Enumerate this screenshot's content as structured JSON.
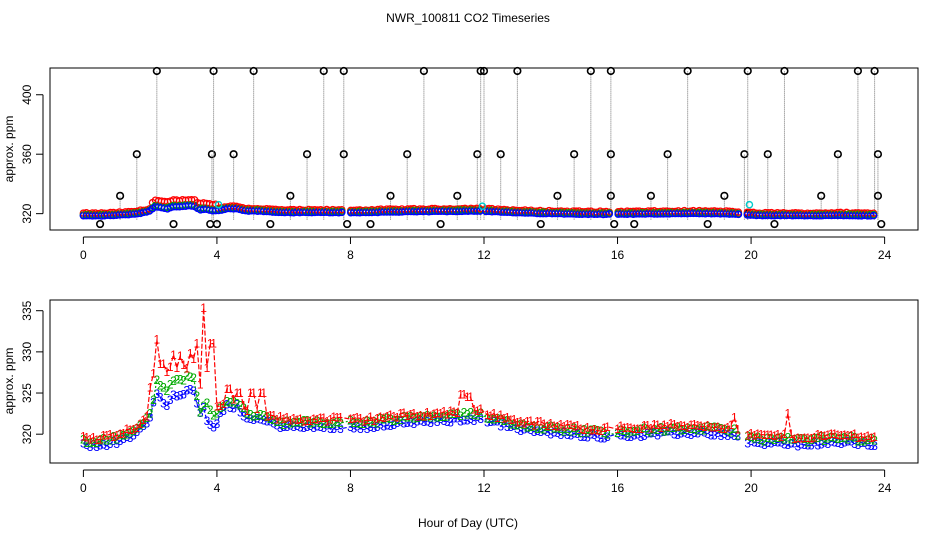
{
  "chart_data": [
    {
      "type": "scatter",
      "title": "NWR_100811  CO2 Timeseries",
      "xlabel": "",
      "ylabel": "approx. ppm",
      "xlim": [
        -1,
        25
      ],
      "ylim": [
        309,
        418
      ],
      "xticks": [
        0,
        4,
        8,
        12,
        16,
        20,
        24
      ],
      "yticks": [
        320,
        360,
        400
      ],
      "series_colors": [
        "#000000",
        "#ff0000",
        "#00aa00",
        "#0000ff",
        "#00cccc"
      ],
      "spike_times": [
        1.1,
        1.6,
        2.2,
        3.85,
        3.9,
        4.0,
        4.5,
        5.1,
        6.2,
        6.7,
        7.2,
        7.8,
        7.8,
        9.2,
        9.7,
        10.2,
        11.2,
        11.8,
        11.9,
        12.0,
        12.5,
        13.0,
        14.2,
        14.7,
        15.2,
        15.8,
        15.8,
        15.8,
        17.0,
        17.5,
        18.1,
        19.2,
        19.8,
        19.9,
        19.9,
        20.5,
        21.0,
        22.1,
        22.6,
        23.2,
        23.7,
        23.8,
        23.8
      ],
      "spike_values": [
        332,
        360,
        416,
        360,
        416,
        313,
        360,
        416,
        332,
        360,
        416,
        416,
        360,
        332,
        360,
        416,
        332,
        360,
        416,
        416,
        360,
        416,
        332,
        360,
        416,
        416,
        360,
        332,
        332,
        360,
        416,
        332,
        360,
        416,
        320,
        360,
        416,
        332,
        360,
        416,
        416,
        360,
        332
      ],
      "low_times": [
        0.5,
        2.7,
        3.8,
        5.6,
        7.9,
        8.6,
        10.7,
        13.7,
        15.9,
        16.5,
        18.7,
        20.7,
        23.9
      ],
      "low_value": 313,
      "cyan_times": [
        4.05,
        11.95,
        19.95
      ],
      "cyan_values": [
        326,
        325,
        326
      ]
    },
    {
      "type": "line",
      "title": "",
      "xlabel": "Hour of Day (UTC)",
      "ylabel": "approx. ppm",
      "xlim": [
        -1,
        25
      ],
      "ylim": [
        316.5,
        336.3
      ],
      "xticks": [
        0,
        4,
        8,
        12,
        16,
        20,
        24
      ],
      "yticks": [
        320,
        325,
        330,
        335
      ],
      "series": [
        {
          "name": "1",
          "color": "#ff0000"
        },
        {
          "name": "2",
          "color": "#00aa00"
        },
        {
          "name": "3",
          "color": "#0000ff"
        }
      ],
      "anchors_x": [
        0,
        0.5,
        1.0,
        1.3,
        1.6,
        1.8,
        2.0,
        2.15,
        2.3,
        2.5,
        2.7,
        2.9,
        3.1,
        3.3,
        3.5,
        3.65,
        3.85,
        4.1,
        4.3,
        4.6,
        4.9,
        5.2,
        5.6,
        6.0,
        6.5,
        7.0,
        7.7,
        8.0,
        8.5,
        9.0,
        10.0,
        11.0,
        11.5,
        11.9,
        12.1,
        13.0,
        14.0,
        15.0,
        15.8,
        16.0,
        16.5,
        17.5,
        18.5,
        19.5,
        19.8,
        20.2,
        21.0,
        21.5,
        22.0,
        23.0,
        23.7
      ],
      "anchors_y": [
        318.8,
        318.8,
        319.2,
        319.6,
        320.2,
        321.0,
        322.0,
        325.0,
        324.5,
        323.5,
        325.0,
        324.8,
        325.5,
        325.5,
        322.5,
        323.5,
        322.0,
        322.5,
        323.5,
        323.5,
        322.0,
        322.0,
        321.5,
        321.0,
        321.0,
        321.0,
        321.0,
        321.0,
        321.0,
        321.3,
        321.6,
        321.8,
        322.0,
        322.0,
        321.8,
        320.8,
        320.3,
        320.0,
        319.8,
        320.0,
        320.0,
        320.2,
        320.3,
        320.0,
        319.3,
        319.0,
        319.0,
        318.8,
        319.0,
        319.1,
        318.8
      ],
      "peaks_red": [
        [
          2.2,
          331.5
        ],
        [
          2.35,
          328.5
        ],
        [
          2.9,
          329.5
        ],
        [
          3.1,
          328.0
        ],
        [
          3.4,
          331.0
        ],
        [
          3.6,
          335.3
        ],
        [
          3.85,
          331.0
        ],
        [
          4.35,
          325.5
        ],
        [
          4.65,
          325.0
        ],
        [
          5.05,
          325.0
        ],
        [
          5.35,
          325.0
        ],
        [
          11.35,
          324.8
        ],
        [
          11.55,
          324.5
        ],
        [
          21.1,
          322.5
        ],
        [
          19.5,
          322.0
        ]
      ]
    }
  ]
}
